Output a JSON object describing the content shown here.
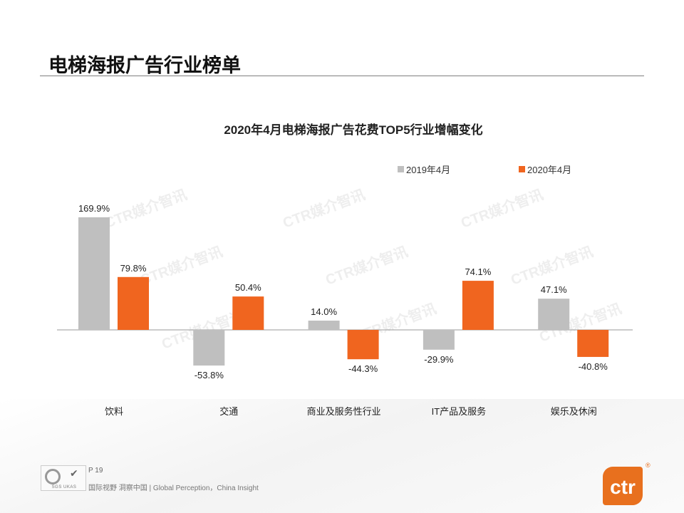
{
  "page_title": "电梯海报广告行业榜单",
  "chart_data": {
    "type": "bar",
    "title": "2020年4月电梯海报广告花费TOP5行业增幅变化",
    "categories": [
      "饮料",
      "交通",
      "商业及服务性行业",
      "IT产品及服务",
      "娱乐及休闲"
    ],
    "series": [
      {
        "name": "2019年4月",
        "color": "#bfbfbf",
        "values": [
          169.9,
          -53.8,
          14.0,
          -29.9,
          47.1
        ],
        "labels": [
          "169.9%",
          "-53.8%",
          "14.0%",
          "-29.9%",
          "47.1%"
        ]
      },
      {
        "name": "2020年4月",
        "color": "#f0651f",
        "values": [
          79.8,
          50.4,
          -44.3,
          74.1,
          -40.8
        ],
        "labels": [
          "79.8%",
          "50.4%",
          "-44.3%",
          "74.1%",
          "-40.8%"
        ]
      }
    ],
    "unit": "%",
    "legend": "top-right",
    "grid": false
  },
  "watermark": "CTR媒介智讯",
  "footer": {
    "page": "P 19",
    "slogan": "国际视野  洞察中国 |  Global Perception，China Insight",
    "logo_text": "ctr",
    "certs": "SGS UKAS"
  },
  "colors": {
    "brand": "#e8701e"
  }
}
